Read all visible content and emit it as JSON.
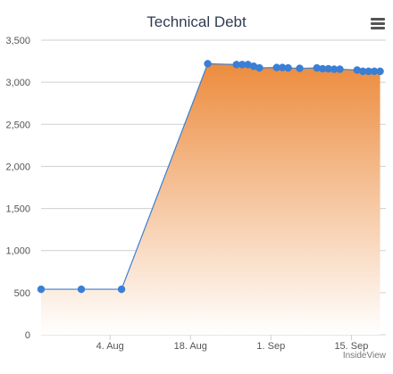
{
  "chart_data": {
    "type": "area",
    "title": "Technical Debt",
    "credit": "InsideView",
    "xlabel": "",
    "ylabel": "",
    "ylim": [
      0,
      3500
    ],
    "xlim": [
      "2014-07-23",
      "2014-09-21"
    ],
    "y_ticks": [
      0,
      500,
      1000,
      1500,
      2000,
      2500,
      3000,
      3500
    ],
    "y_tick_labels": [
      "0",
      "500",
      "1,000",
      "1,500",
      "2,000",
      "2,500",
      "3,000",
      "3,500"
    ],
    "x_ticks": [
      "2014-08-04",
      "2014-08-18",
      "2014-09-01",
      "2014-09-15"
    ],
    "x_tick_labels": [
      "4. Aug",
      "18. Aug",
      "1. Sep",
      "15. Sep"
    ],
    "grid": "horizontal",
    "series": [
      {
        "x": [
          "2014-07-23",
          "2014-07-30",
          "2014-08-06",
          "2014-08-21",
          "2014-08-26",
          "2014-08-27",
          "2014-08-28",
          "2014-08-29",
          "2014-08-30",
          "2014-09-02",
          "2014-09-03",
          "2014-09-04",
          "2014-09-06",
          "2014-09-09",
          "2014-09-10",
          "2014-09-11",
          "2014-09-12",
          "2014-09-13",
          "2014-09-16",
          "2014-09-17",
          "2014-09-18",
          "2014-09-19",
          "2014-09-20"
        ],
        "y": [
          540,
          540,
          540,
          3220,
          3210,
          3210,
          3210,
          3190,
          3170,
          3175,
          3175,
          3170,
          3165,
          3170,
          3160,
          3160,
          3155,
          3155,
          3145,
          3130,
          3130,
          3130,
          3130
        ]
      }
    ],
    "colors": {
      "line": "#3a7fd5",
      "marker": "#3a7fd5",
      "fill_top": "#ec8c3e",
      "fill_bottom": "#ffffff",
      "grid": "#cfcfcf",
      "text": "#555555",
      "title": "#2f3b52"
    }
  },
  "ui": {
    "menu_icon": "hamburger-menu-icon"
  }
}
